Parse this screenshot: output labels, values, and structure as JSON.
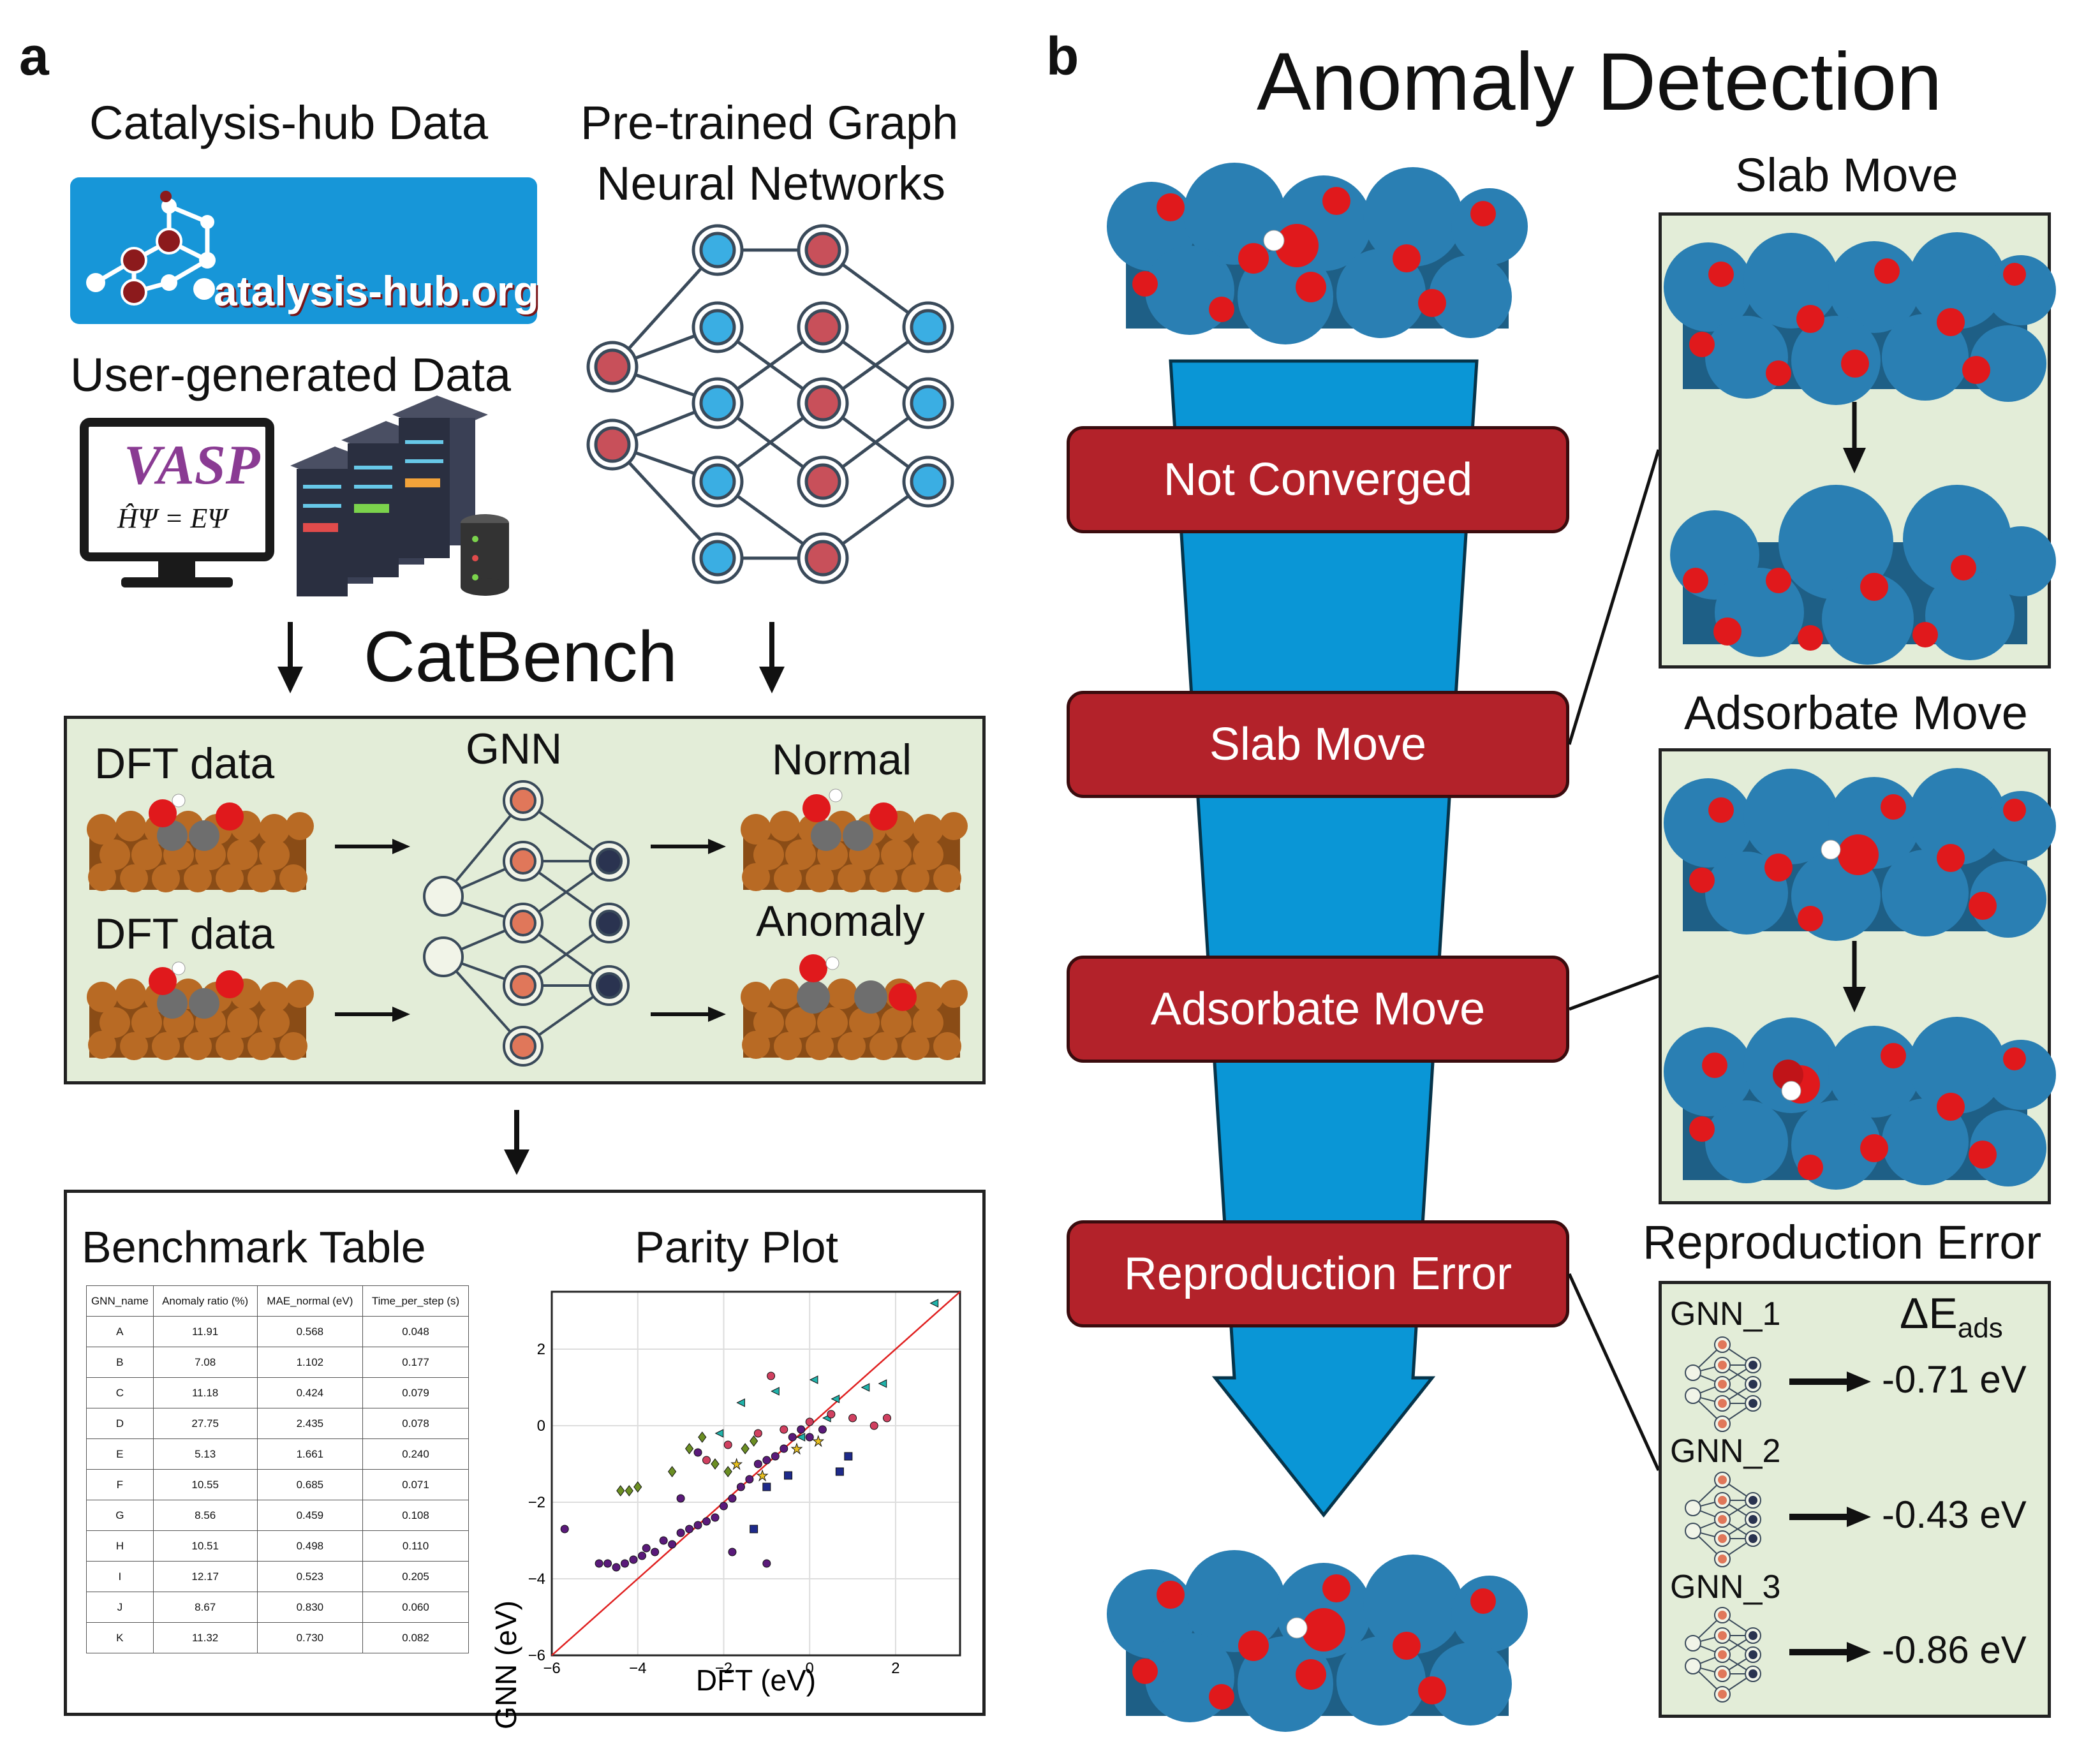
{
  "panel_a": {
    "letter": "a",
    "catalysis_hub_title": "Catalysis-hub Data",
    "catalysis_hub_logo_text": "atalysis-hub.org",
    "pretrained_title_line1": "Pre-trained Graph",
    "pretrained_title_line2": "Neural Networks",
    "user_generated_title": "User-generated Data",
    "vasp_logo": "VASP",
    "vasp_equation": "ĤΨ = EΨ",
    "catbench_title": "CatBench",
    "dft_data_1": "DFT data",
    "dft_data_2": "DFT data",
    "gnn_label": "GNN",
    "normal_label": "Normal",
    "anomaly_label": "Anomaly",
    "benchmark_title": "Benchmark Table",
    "parity_title": "Parity Plot",
    "table": {
      "headers": [
        "GNN_name",
        "Anomaly ratio (%)",
        "MAE_normal (eV)",
        "Time_per_step (s)"
      ],
      "rows": [
        [
          "A",
          "11.91",
          "0.568",
          "0.048"
        ],
        [
          "B",
          "7.08",
          "1.102",
          "0.177"
        ],
        [
          "C",
          "11.18",
          "0.424",
          "0.079"
        ],
        [
          "D",
          "27.75",
          "2.435",
          "0.078"
        ],
        [
          "E",
          "5.13",
          "1.661",
          "0.240"
        ],
        [
          "F",
          "10.55",
          "0.685",
          "0.071"
        ],
        [
          "G",
          "8.56",
          "0.459",
          "0.108"
        ],
        [
          "H",
          "10.51",
          "0.498",
          "0.110"
        ],
        [
          "I",
          "12.17",
          "0.523",
          "0.205"
        ],
        [
          "J",
          "8.67",
          "0.830",
          "0.060"
        ],
        [
          "K",
          "11.32",
          "0.730",
          "0.082"
        ]
      ]
    }
  },
  "panel_b": {
    "letter": "b",
    "title": "Anomaly Detection",
    "filters": [
      "Not Converged",
      "Slab Move",
      "Adsorbate Move",
      "Reproduction Error"
    ],
    "slab_move_title": "Slab Move",
    "adsorbate_move_title": "Adsorbate Move",
    "reproduction_title": "Reproduction Error",
    "delta_label": "ΔE",
    "delta_sub": "ads",
    "gnns": [
      {
        "name": "GNN_1",
        "value": "-0.71 eV"
      },
      {
        "name": "GNN_2",
        "value": "-0.43 eV"
      },
      {
        "name": "GNN_3",
        "value": "-0.86 eV"
      }
    ]
  },
  "colors": {
    "blue_atom": "#2a7fb3",
    "red_atom": "#e0191c",
    "copper": "#b86a24",
    "funnel": "#0a96d6",
    "filter_red": "#b3222a",
    "panel_green": "#e3edd8",
    "nn_blue": "#3aaee3",
    "nn_red": "#c8505a"
  },
  "chart_data": {
    "type": "scatter",
    "title": "Parity Plot",
    "xlabel": "DFT (eV)",
    "ylabel": "GNN (eV)",
    "xlim": [
      -6,
      3.5
    ],
    "ylim": [
      -6,
      3.5
    ],
    "xticks": [
      -6,
      -4,
      -2,
      0,
      2
    ],
    "yticks": [
      -6,
      -4,
      -2,
      0,
      2
    ],
    "grid": true,
    "parity_line": true,
    "series": [
      {
        "marker": "circle",
        "color": "#5a1a7a",
        "points": [
          [
            -5.7,
            -2.7
          ],
          [
            -4.9,
            -3.6
          ],
          [
            -4.7,
            -3.6
          ],
          [
            -4.5,
            -3.7
          ],
          [
            -4.3,
            -3.6
          ],
          [
            -4.1,
            -3.5
          ],
          [
            -3.9,
            -3.4
          ],
          [
            -3.8,
            -3.2
          ],
          [
            -3.6,
            -3.3
          ],
          [
            -3.4,
            -3.0
          ],
          [
            -3.2,
            -3.1
          ],
          [
            -3.0,
            -2.8
          ],
          [
            -2.8,
            -2.7
          ],
          [
            -2.6,
            -2.6
          ],
          [
            -2.4,
            -2.5
          ],
          [
            -2.2,
            -2.4
          ],
          [
            -2.0,
            -2.1
          ],
          [
            -1.8,
            -1.9
          ],
          [
            -1.6,
            -1.6
          ],
          [
            -1.4,
            -1.4
          ],
          [
            -1.2,
            -1.0
          ],
          [
            -1.0,
            -0.9
          ],
          [
            -0.8,
            -0.8
          ],
          [
            -0.6,
            -0.6
          ],
          [
            -0.4,
            -0.3
          ],
          [
            -0.2,
            -0.1
          ],
          [
            0.0,
            -0.3
          ],
          [
            0.3,
            -0.1
          ],
          [
            -1.8,
            -3.3
          ],
          [
            -1.0,
            -3.6
          ],
          [
            -2.6,
            -0.7
          ],
          [
            -3.0,
            -1.9
          ]
        ]
      },
      {
        "marker": "diamond",
        "color": "#6b8e23",
        "points": [
          [
            -4.4,
            -1.7
          ],
          [
            -4.2,
            -1.7
          ],
          [
            -4.0,
            -1.6
          ],
          [
            -3.2,
            -1.2
          ],
          [
            -2.8,
            -0.6
          ],
          [
            -2.5,
            -0.3
          ],
          [
            -2.2,
            -1.0
          ],
          [
            -1.9,
            -1.2
          ],
          [
            -1.5,
            -0.6
          ],
          [
            -1.3,
            -0.4
          ]
        ]
      },
      {
        "marker": "triangle",
        "color": "#20b2aa",
        "points": [
          [
            -2.1,
            -0.2
          ],
          [
            -1.6,
            0.6
          ],
          [
            -0.8,
            0.9
          ],
          [
            0.1,
            1.2
          ],
          [
            0.6,
            0.7
          ],
          [
            1.3,
            1.0
          ],
          [
            1.7,
            1.1
          ],
          [
            2.9,
            3.2
          ],
          [
            -0.2,
            -0.3
          ],
          [
            0.4,
            0.2
          ]
        ]
      },
      {
        "marker": "circle",
        "color": "#d04060",
        "points": [
          [
            -2.4,
            -0.9
          ],
          [
            -1.9,
            -0.5
          ],
          [
            -1.2,
            -0.2
          ],
          [
            -0.6,
            -0.1
          ],
          [
            0.0,
            0.1
          ],
          [
            0.5,
            0.3
          ],
          [
            1.0,
            0.2
          ],
          [
            1.5,
            0.0
          ],
          [
            1.8,
            0.2
          ],
          [
            -0.9,
            1.3
          ]
        ]
      },
      {
        "marker": "square",
        "color": "#1e2a8a",
        "points": [
          [
            -1.3,
            -2.7
          ],
          [
            -1.0,
            -1.6
          ],
          [
            0.7,
            -1.2
          ],
          [
            0.9,
            -0.8
          ],
          [
            -0.5,
            -1.3
          ]
        ]
      },
      {
        "marker": "star",
        "color": "#e8c020",
        "points": [
          [
            -1.7,
            -1.0
          ],
          [
            -0.3,
            -0.6
          ],
          [
            0.2,
            -0.4
          ],
          [
            -1.1,
            -1.3
          ]
        ]
      }
    ]
  }
}
